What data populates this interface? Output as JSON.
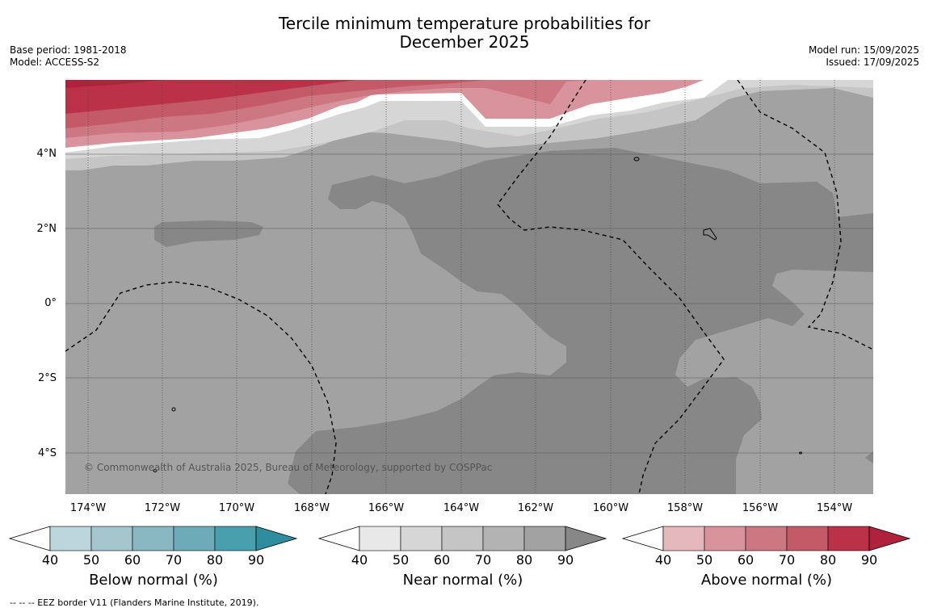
{
  "title_line1": "Tercile minimum temperature probabilities for",
  "title_line2": "December 2025",
  "meta_left": [
    "Base period: 1981-2018",
    "Model: ACCESS-S2"
  ],
  "meta_right": [
    "Model run: 15/09/2025",
    "Issued: 17/09/2025"
  ],
  "y_labels": [
    "4°N",
    "2°N",
    "0°",
    "2°S",
    "4°S"
  ],
  "x_labels": [
    "174°W",
    "172°W",
    "170°W",
    "168°W",
    "166°W",
    "164°W",
    "162°W",
    "160°W",
    "158°W",
    "156°W",
    "154°W"
  ],
  "copyright": "© Commonwealth of Australia 2025, Bureau of Meteorology, supported by COSPPac",
  "colorbars": [
    {
      "label": "Below normal (%)",
      "ticks": [
        "40",
        "50",
        "60",
        "70",
        "80",
        "90"
      ],
      "colors": [
        "#bdd5dc",
        "#a6c6cd",
        "#89b7c2",
        "#6dabb9",
        "#4a9fae",
        "#2f8da0"
      ]
    },
    {
      "label": "Near normal (%)",
      "ticks": [
        "40",
        "50",
        "60",
        "70",
        "80",
        "90"
      ],
      "colors": [
        "#e8e8e8",
        "#d6d6d6",
        "#c5c5c5",
        "#b3b3b3",
        "#a2a2a2",
        "#878787"
      ]
    },
    {
      "label": "Above normal (%)",
      "ticks": [
        "40",
        "50",
        "60",
        "70",
        "80",
        "90"
      ],
      "colors": [
        "#e4b8bd",
        "#d8939c",
        "#cd7782",
        "#c45a68",
        "#bb3148",
        "#b0213c"
      ]
    }
  ],
  "footnote": "--  --  -- EEZ border V11 (Flanders Marine Institute, 2019)."
}
